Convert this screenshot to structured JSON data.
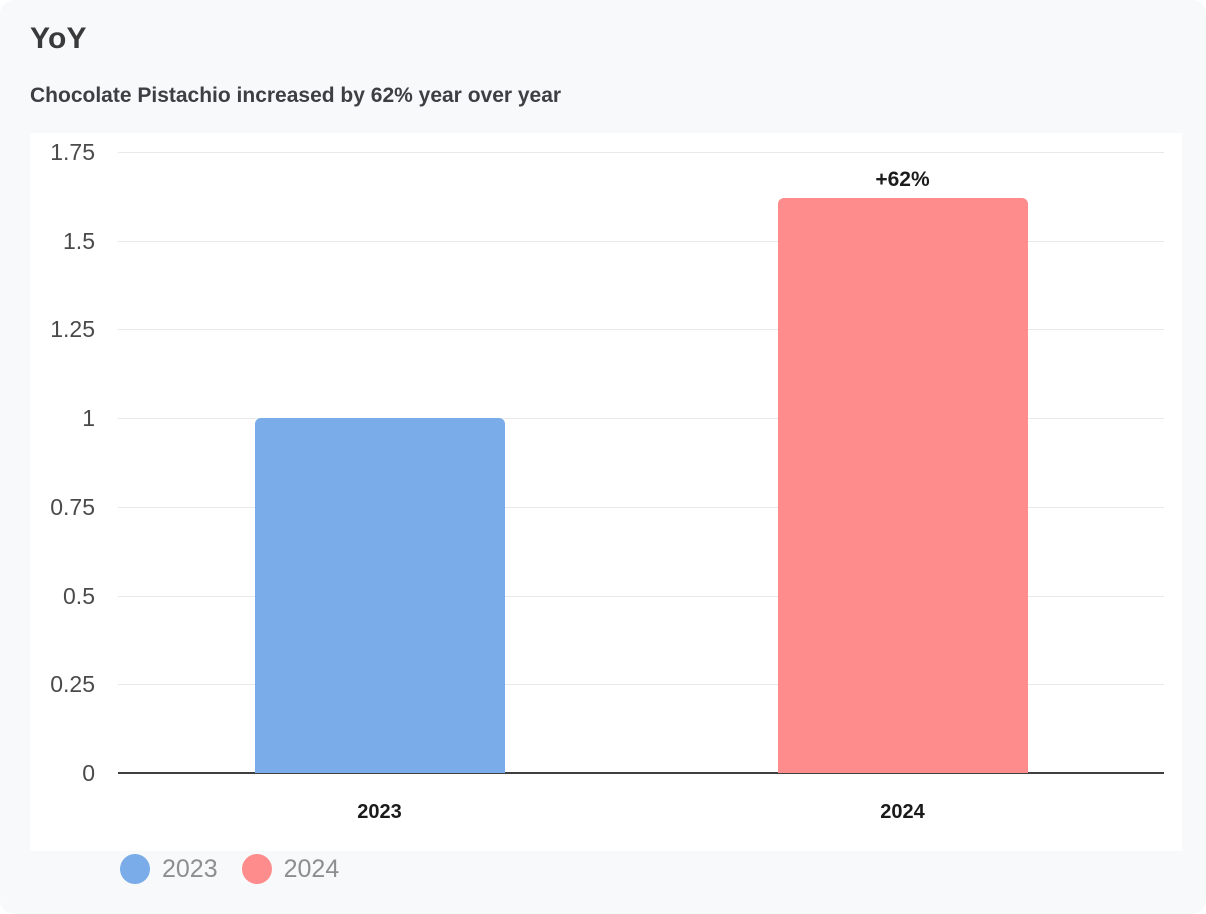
{
  "header": {
    "title": "YoY",
    "subtitle": "Chocolate Pistachio increased by 62% year over year"
  },
  "colors": {
    "page_background": "#f8f9fb",
    "panel_background": "#ffffff",
    "gridline": "#e9e9e9",
    "axis_line": "#3f3f3f",
    "bar_2023": "#79ace8",
    "bar_2024": "#ff8c8c",
    "legend_text": "#8e8e8e"
  },
  "chart_data": {
    "type": "bar",
    "title": "YoY",
    "subtitle": "Chocolate Pistachio increased by 62% year over year",
    "categories": [
      "2023",
      "2024"
    ],
    "series": [
      {
        "name": "2023",
        "value": 1.0,
        "color": "#79ace8"
      },
      {
        "name": "2024",
        "value": 1.62,
        "color": "#ff8c8c"
      }
    ],
    "annotations": [
      {
        "category": "2024",
        "label": "+62%"
      }
    ],
    "ylim": [
      0,
      1.75
    ],
    "yticks": [
      1.75,
      1.5,
      1.25,
      1.0,
      0.75,
      0.5,
      0.25,
      0
    ],
    "ytick_labels": [
      "1.75",
      "1.5",
      "1.25",
      "1",
      "0.75",
      "0.5",
      "0.25",
      "0"
    ],
    "grid": true,
    "legend": {
      "position": "bottom",
      "entries": [
        {
          "label": "2023",
          "color": "#79ace8"
        },
        {
          "label": "2024",
          "color": "#ff8c8c"
        }
      ]
    }
  }
}
